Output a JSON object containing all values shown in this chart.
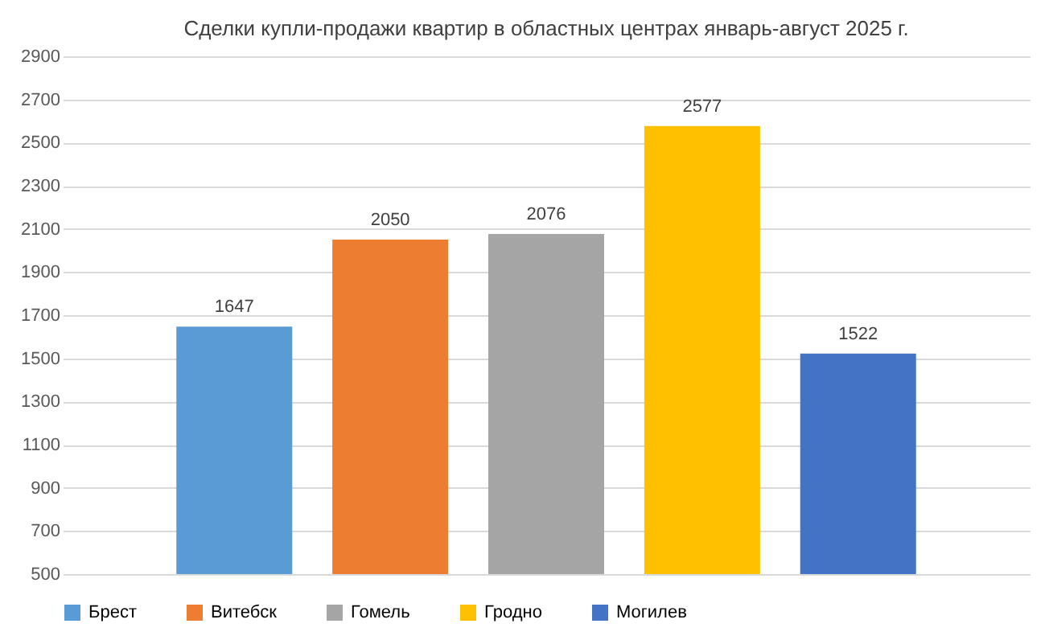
{
  "chart_data": {
    "type": "bar",
    "title": "Сделки купли-продажи квартир в областных центрах январь-август 2025 г.",
    "categories": [
      null
    ],
    "series": [
      {
        "name": "Брест",
        "color": "#5b9bd5",
        "values": [
          1647
        ]
      },
      {
        "name": "Витебск",
        "color": "#ed7d31",
        "values": [
          2050
        ]
      },
      {
        "name": "Гомель",
        "color": "#a5a5a5",
        "values": [
          2076
        ]
      },
      {
        "name": "Гродно",
        "color": "#ffc000",
        "values": [
          2577
        ]
      },
      {
        "name": "Могилев",
        "color": "#4472c4",
        "values": [
          1522
        ]
      }
    ],
    "ylim": [
      500,
      2900
    ],
    "yticks": [
      500,
      700,
      900,
      1100,
      1300,
      1500,
      1700,
      1900,
      2100,
      2300,
      2500,
      2700,
      2900
    ],
    "grid": "y",
    "legend": "bottom",
    "data_labels": true
  }
}
